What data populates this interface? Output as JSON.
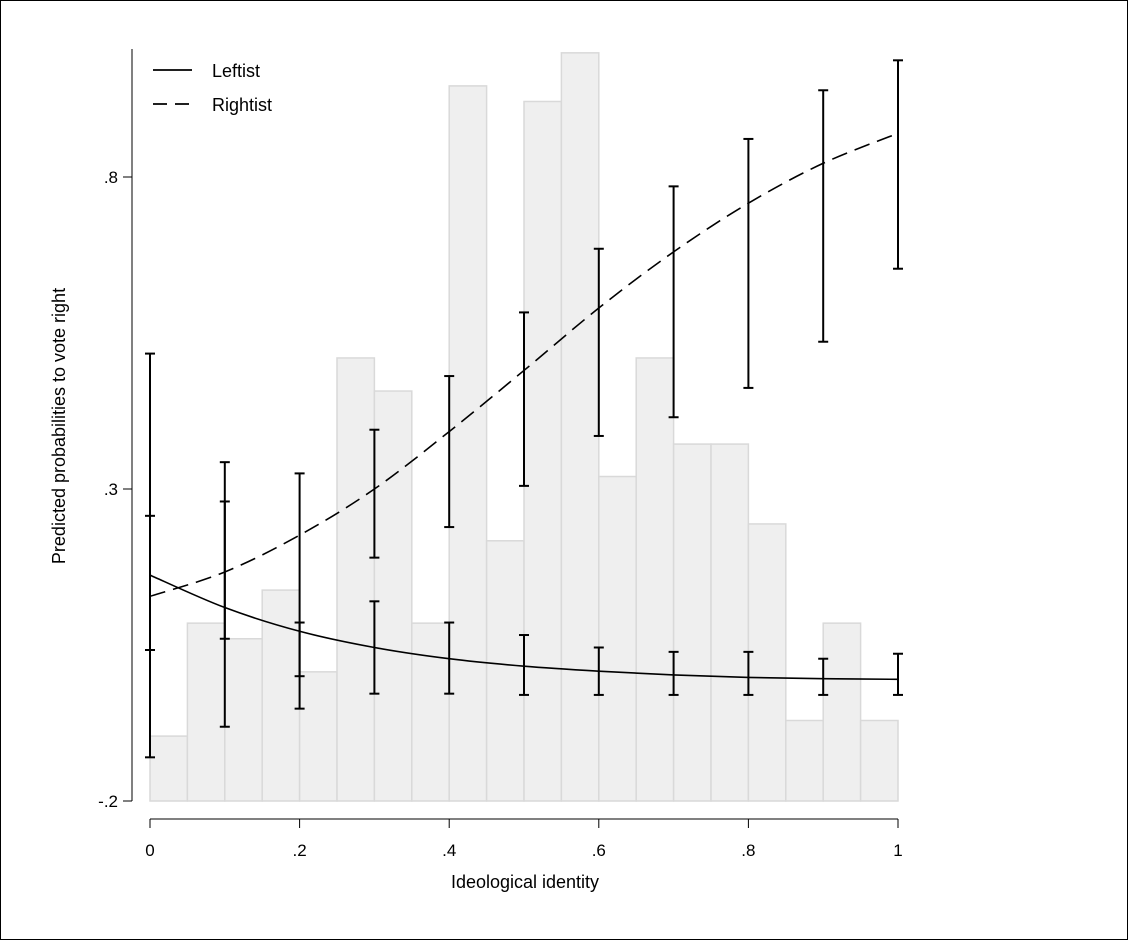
{
  "chart_data": {
    "type": "line",
    "title": "",
    "xlabel": "Ideological identity",
    "ylabel": "Predicted probabilities to vote right",
    "xlim": [
      0,
      1
    ],
    "ylim": [
      -0.2,
      1.0
    ],
    "x_ticks": [
      {
        "value": 0,
        "label": "0"
      },
      {
        "value": 0.2,
        "label": ".2"
      },
      {
        "value": 0.4,
        "label": ".4"
      },
      {
        "value": 0.6,
        "label": ".6"
      },
      {
        "value": 0.8,
        "label": ".8"
      },
      {
        "value": 1,
        "label": "1"
      }
    ],
    "y_ticks": [
      {
        "value": -0.2,
        "label": "-.2"
      },
      {
        "value": 0.3,
        "label": ".3"
      },
      {
        "value": 0.8,
        "label": ".8"
      }
    ],
    "grid": false,
    "legend_position": "top-left",
    "histogram": {
      "bin_width": 0.05,
      "bin_starts": [
        0,
        0.05,
        0.1,
        0.15,
        0.2,
        0.25,
        0.3,
        0.35,
        0.4,
        0.45,
        0.5,
        0.55,
        0.6,
        0.65,
        0.7,
        0.75,
        0.8,
        0.85,
        0.9,
        0.95
      ],
      "heights": [
        -0.096,
        0.085,
        0.06,
        0.138,
        0.007,
        0.51,
        0.457,
        0.085,
        0.946,
        0.217,
        0.921,
        0.999,
        0.32,
        0.51,
        0.372,
        0.372,
        0.244,
        -0.071,
        0.085,
        -0.071
      ],
      "fill_color": "#efefef",
      "edge_color": "#d9d9d9"
    },
    "series": [
      {
        "name": "Leftist",
        "line_style": "solid",
        "x": [
          0,
          0.1,
          0.2,
          0.3,
          0.4,
          0.5,
          0.6,
          0.7,
          0.8,
          0.9,
          1
        ],
        "y": [
          0.162,
          0.11,
          0.072,
          0.046,
          0.028,
          0.016,
          0.008,
          0.002,
          -0.002,
          -0.004,
          -0.005
        ],
        "ci_lower": [
          -0.13,
          -0.081,
          -0.052,
          -0.028,
          -0.028,
          -0.03,
          -0.03,
          -0.03,
          -0.03,
          -0.03,
          -0.03
        ],
        "ci_upper": [
          0.257,
          0.28,
          0.086,
          0.12,
          0.086,
          0.066,
          0.046,
          0.039,
          0.039,
          0.028,
          0.036
        ]
      },
      {
        "name": "Rightist",
        "line_style": "dashed",
        "x": [
          0,
          0.1,
          0.2,
          0.3,
          0.4,
          0.5,
          0.6,
          0.7,
          0.8,
          0.9,
          1
        ],
        "y": [
          0.128,
          0.167,
          0.226,
          0.3,
          0.392,
          0.49,
          0.59,
          0.68,
          0.758,
          0.822,
          0.87
        ],
        "ci_lower": [
          0.042,
          0.06,
          0.0,
          0.19,
          0.239,
          0.305,
          0.385,
          0.415,
          0.462,
          0.536,
          0.653
        ],
        "ci_upper": [
          0.517,
          0.343,
          0.325,
          0.395,
          0.481,
          0.583,
          0.685,
          0.785,
          0.861,
          0.939,
          0.987
        ]
      }
    ]
  }
}
